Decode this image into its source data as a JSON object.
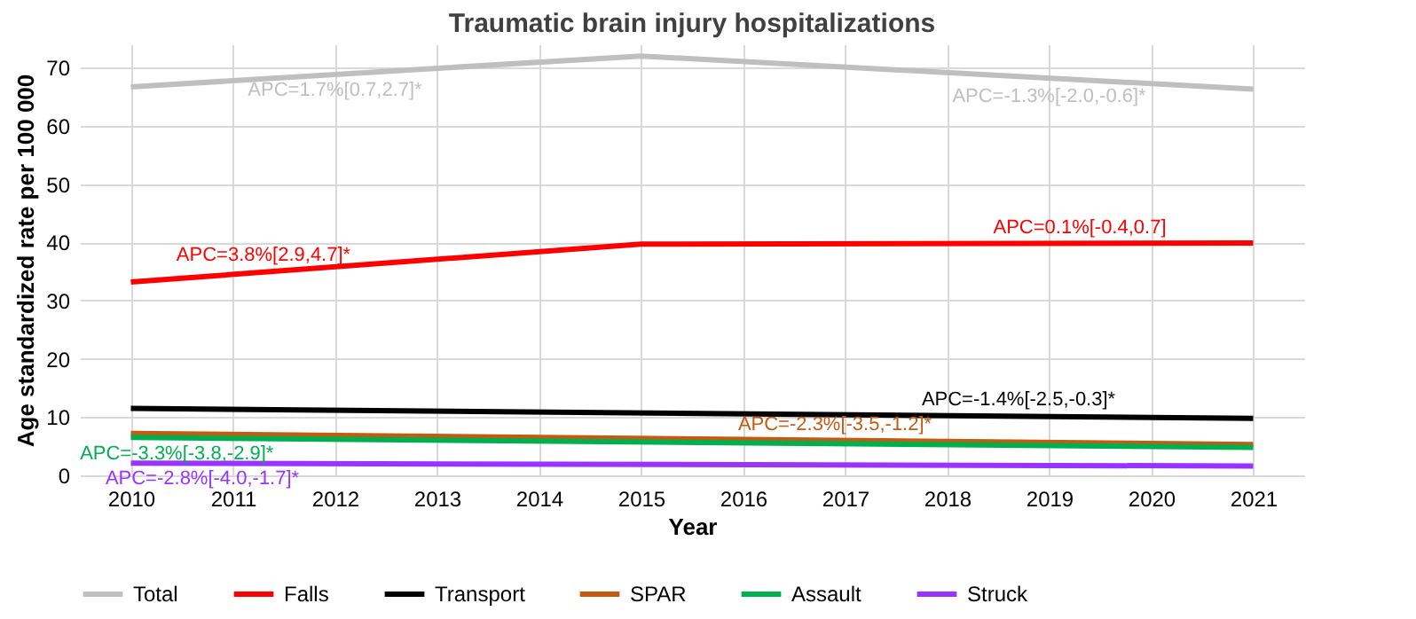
{
  "chart_data": {
    "type": "line",
    "title": "Traumatic brain injury hospitalizations",
    "xlabel": "Year",
    "ylabel": "Age standardized rate per 100 000",
    "xlim": [
      2009.5,
      2021.5
    ],
    "xticks": [
      2010,
      2011,
      2012,
      2013,
      2014,
      2015,
      2016,
      2017,
      2018,
      2019,
      2020,
      2021
    ],
    "ylim": [
      0,
      74
    ],
    "yticks": [
      0,
      10,
      20,
      30,
      40,
      50,
      60,
      70
    ],
    "grid": true,
    "legend": "bottom",
    "marker": "none",
    "line_style": "solid",
    "series": [
      {
        "name": "Total",
        "color": "#bfbfbf",
        "x": [
          2010,
          2015,
          2021
        ],
        "values": [
          66.7,
          72.0,
          66.3
        ]
      },
      {
        "name": "Falls",
        "color": "#ff0000",
        "x": [
          2010,
          2015,
          2021
        ],
        "values": [
          33.2,
          39.7,
          39.9
        ]
      },
      {
        "name": "Transport",
        "color": "#000000",
        "x": [
          2010,
          2021
        ],
        "values": [
          11.5,
          9.8
        ]
      },
      {
        "name": "SPAR",
        "color": "#c55a11",
        "x": [
          2010,
          2021
        ],
        "values": [
          7.2,
          5.3
        ]
      },
      {
        "name": "Assault",
        "color": "#00b050",
        "x": [
          2010,
          2021
        ],
        "values": [
          6.5,
          4.8
        ]
      },
      {
        "name": "Struck",
        "color": "#9933ff",
        "x": [
          2010,
          2021
        ],
        "values": [
          2.1,
          1.6
        ]
      }
    ],
    "annotations": [
      {
        "text": "APC=1.7%[0.7,2.7]*",
        "x": 2012,
        "y": 68.8
      },
      {
        "text": "APC=-1.3%[-2.0,-0.6]*",
        "x": 2019,
        "y": 67.7
      },
      {
        "text": "APC=3.8%[2.9,4.7]*",
        "x": 2011.3,
        "y": 35.0
      },
      {
        "text": "APC=0.1%[-0.4,0.7]",
        "x": 2019.3,
        "y": 39.8
      },
      {
        "text": "APC=-1.4%[-2.5,-0.3]*",
        "x": 2018.7,
        "y": 10.2
      },
      {
        "text": "APC=-2.3%[-3.5,-1.2]*",
        "x": 2016.9,
        "y": 5.9
      },
      {
        "text": "APC=-3.3%[-3.8,-2.9]*",
        "x": 2010.45,
        "y": 6.4
      },
      {
        "text": "APC=-2.8%[-4.0,-1.7]*",
        "x": 2010.7,
        "y": 2.1
      }
    ]
  }
}
